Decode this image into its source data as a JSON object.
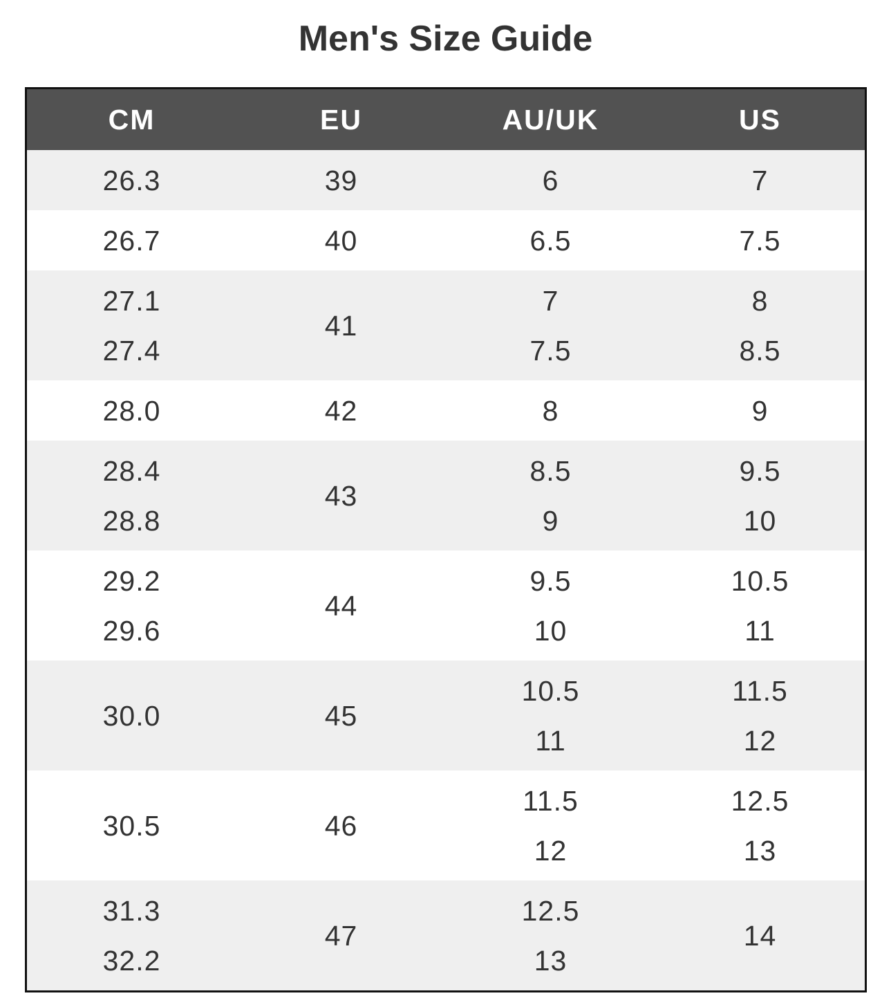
{
  "title": "Men's Size Guide",
  "table": {
    "headers": [
      "CM",
      "EU",
      "AU/UK",
      "US"
    ],
    "rows": [
      [
        [
          "26.3"
        ],
        [
          "39"
        ],
        [
          "6"
        ],
        [
          "7"
        ]
      ],
      [
        [
          "26.7"
        ],
        [
          "40"
        ],
        [
          "6.5"
        ],
        [
          "7.5"
        ]
      ],
      [
        [
          "27.1",
          "27.4"
        ],
        [
          "41"
        ],
        [
          "7",
          "7.5"
        ],
        [
          "8",
          "8.5"
        ]
      ],
      [
        [
          "28.0"
        ],
        [
          "42"
        ],
        [
          "8"
        ],
        [
          "9"
        ]
      ],
      [
        [
          "28.4",
          "28.8"
        ],
        [
          "43"
        ],
        [
          "8.5",
          "9"
        ],
        [
          "9.5",
          "10"
        ]
      ],
      [
        [
          "29.2",
          "29.6"
        ],
        [
          "44"
        ],
        [
          "9.5",
          "10"
        ],
        [
          "10.5",
          "11"
        ]
      ],
      [
        [
          "30.0"
        ],
        [
          "45"
        ],
        [
          "10.5",
          "11"
        ],
        [
          "11.5",
          "12"
        ]
      ],
      [
        [
          "30.5"
        ],
        [
          "46"
        ],
        [
          "11.5",
          "12"
        ],
        [
          "12.5",
          "13"
        ]
      ],
      [
        [
          "31.3",
          "32.2"
        ],
        [
          "47"
        ],
        [
          "12.5",
          "13"
        ],
        [
          "14"
        ]
      ]
    ]
  },
  "colors": {
    "header_bg": "#525252",
    "row_alt_bg": "#efefef",
    "text": "#333333"
  }
}
